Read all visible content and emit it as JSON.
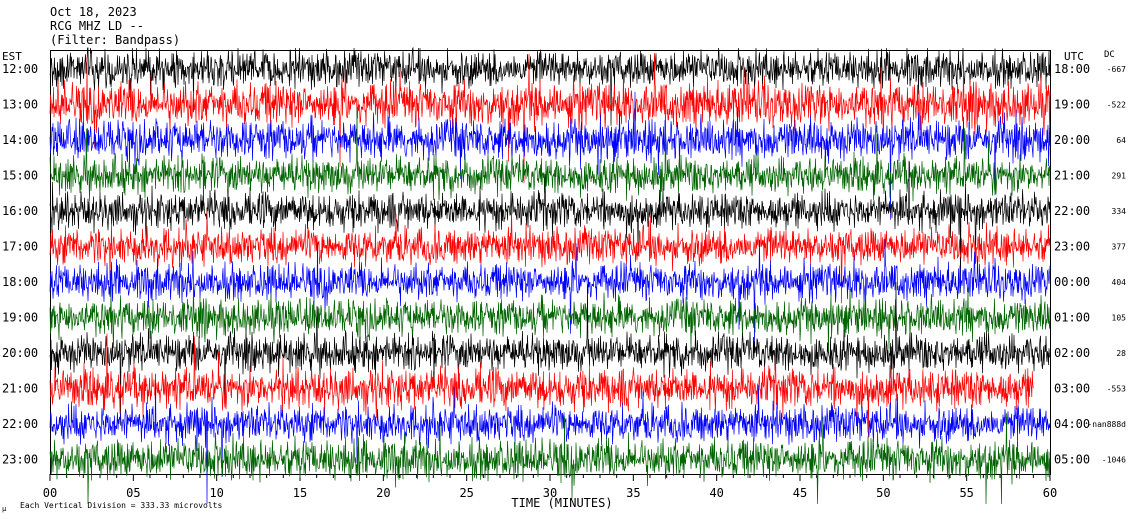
{
  "header": {
    "date": "Oct 18, 2023",
    "station": "RCG MHZ LD --",
    "filter": "(Filter: Bandpass)"
  },
  "left_axis_title": "EST",
  "right_axis_title": "UTC",
  "dc_title": "DC",
  "x_axis_title": "TIME (MINUTES)",
  "footer_note": "Each Vertical Division = 333.33 microvolts",
  "corner_mark": "μ",
  "colors": {
    "black": "#000000",
    "red": "#ff0000",
    "blue": "#0000ff",
    "green": "#006400",
    "frame": "#000000"
  },
  "chart_data": {
    "type": "line",
    "description_free": true,
    "x_ticks": [
      "00",
      "05",
      "10",
      "15",
      "20",
      "25",
      "30",
      "35",
      "40",
      "45",
      "50",
      "55",
      "60"
    ],
    "x_tick_values": [
      0,
      5,
      10,
      15,
      20,
      25,
      30,
      35,
      40,
      45,
      50,
      55,
      60
    ],
    "xlim": [
      0,
      60
    ],
    "traces": [
      {
        "est": "12:00",
        "utc": "18:00",
        "dc": "-667",
        "color": "black",
        "amp": 1.0,
        "start": 0,
        "end": 60
      },
      {
        "est": "13:00",
        "utc": "19:00",
        "dc": "-522",
        "color": "red",
        "amp": 1.2,
        "start": 0,
        "end": 60
      },
      {
        "est": "14:00",
        "utc": "20:00",
        "dc": "64",
        "color": "blue",
        "amp": 1.1,
        "start": 0,
        "end": 60
      },
      {
        "est": "15:00",
        "utc": "21:00",
        "dc": "291",
        "color": "green",
        "amp": 1.0,
        "start": 0,
        "end": 60
      },
      {
        "est": "16:00",
        "utc": "22:00",
        "dc": "334",
        "color": "black",
        "amp": 1.0,
        "start": 0,
        "end": 60
      },
      {
        "est": "17:00",
        "utc": "23:00",
        "dc": "377",
        "color": "red",
        "amp": 1.0,
        "start": 0,
        "end": 60
      },
      {
        "est": "18:00",
        "utc": "00:00",
        "dc": "404",
        "color": "blue",
        "amp": 1.0,
        "start": 0,
        "end": 60
      },
      {
        "est": "19:00",
        "utc": "01:00",
        "dc": "105",
        "color": "green",
        "amp": 1.0,
        "start": 0,
        "end": 60
      },
      {
        "est": "20:00",
        "utc": "02:00",
        "dc": "28",
        "color": "black",
        "amp": 1.0,
        "start": 0,
        "end": 60
      },
      {
        "est": "21:00",
        "utc": "03:00",
        "dc": "-553",
        "color": "red",
        "amp": 1.1,
        "start": 0,
        "end": 59
      },
      {
        "est": "22:00",
        "utc": "04:00",
        "dc": "-nan888d",
        "color": "blue",
        "amp": 1.0,
        "start": 0,
        "end": 60
      },
      {
        "est": "23:00",
        "utc": "05:00",
        "dc": "-1046",
        "color": "green",
        "amp": 1.1,
        "start": 0,
        "end": 60
      }
    ]
  }
}
